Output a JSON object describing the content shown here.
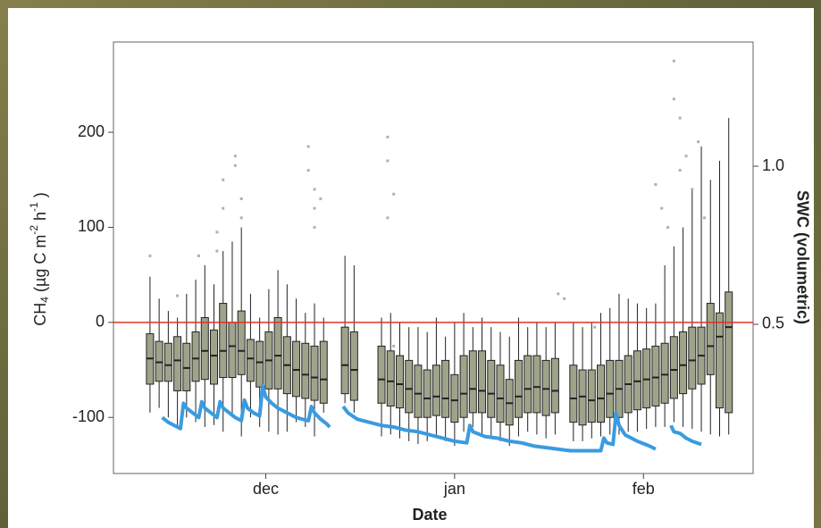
{
  "chart_data": {
    "type": "boxplot",
    "xlabel": "Date",
    "ylabel": [
      "CH",
      "4",
      " (µg C  m",
      "-2",
      " h",
      "-1",
      " )"
    ],
    "y2label": "SWC (volumetric)",
    "xlim": [
      5,
      110
    ],
    "xticks": [
      {
        "value": 30,
        "label": "dec"
      },
      {
        "value": 61,
        "label": "jan"
      },
      {
        "value": 92,
        "label": "feb"
      }
    ],
    "ylim": [
      -159,
      295
    ],
    "yticks": [
      -100,
      0,
      100,
      200
    ],
    "y2lim": [
      0.028,
      1.393
    ],
    "y2ticks": [
      0.5,
      {
        "value": 1.0,
        "label": "1.0"
      }
    ],
    "box_color": "#9ea48a",
    "outlier_color": "#b0b0b0",
    "hline": 0,
    "hline_color": "#e03228",
    "x": [
      11,
      12.5,
      14,
      15.5,
      17,
      18.5,
      20,
      21.5,
      23,
      24.5,
      26,
      27.5,
      29,
      30.5,
      32,
      33.5,
      35,
      36.5,
      38,
      39.5,
      43,
      44.5,
      49,
      50.5,
      52,
      53.5,
      55,
      56.5,
      58,
      59.5,
      61,
      62.5,
      64,
      65.5,
      67,
      68.5,
      70,
      71.5,
      73,
      74.5,
      76,
      77.5,
      80.5,
      82,
      83.5,
      85,
      86.5,
      88,
      89.5,
      91,
      92.5,
      94,
      95.5,
      97,
      98.5,
      100,
      101.5,
      103,
      104.5,
      106
    ],
    "whisker_low": [
      -95,
      -90,
      -100,
      -110,
      -100,
      -105,
      -110,
      -108,
      -115,
      -100,
      -120,
      -100,
      -110,
      -115,
      -118,
      -115,
      -105,
      -110,
      -120,
      -95,
      -85,
      -95,
      -120,
      -118,
      -122,
      -125,
      -128,
      -125,
      -120,
      -125,
      -130,
      -115,
      -110,
      -118,
      -120,
      -125,
      -130,
      -120,
      -115,
      -118,
      -122,
      -118,
      -125,
      -125,
      -122,
      -120,
      -118,
      -118,
      -115,
      -115,
      -112,
      -110,
      -110,
      -105,
      -110,
      -112,
      -115,
      -118,
      -120,
      -118
    ],
    "q1": [
      -65,
      -62,
      -62,
      -72,
      -72,
      -62,
      -60,
      -65,
      -58,
      -58,
      -55,
      -62,
      -68,
      -70,
      -70,
      -75,
      -78,
      -80,
      -82,
      -85,
      -75,
      -82,
      -85,
      -88,
      -90,
      -95,
      -100,
      -100,
      -98,
      -100,
      -105,
      -100,
      -95,
      -95,
      -100,
      -105,
      -108,
      -100,
      -95,
      -95,
      -98,
      -95,
      -105,
      -108,
      -105,
      -105,
      -100,
      -100,
      -95,
      -92,
      -90,
      -88,
      -85,
      -80,
      -75,
      -70,
      -65,
      -55,
      -90,
      -95
    ],
    "median": [
      -38,
      -42,
      -45,
      -40,
      -48,
      -38,
      -30,
      -35,
      -30,
      -25,
      -30,
      -38,
      -42,
      -40,
      -35,
      -45,
      -50,
      -55,
      -58,
      -60,
      -45,
      -50,
      -60,
      -62,
      -65,
      -70,
      -75,
      -80,
      -78,
      -80,
      -82,
      -75,
      -70,
      -72,
      -75,
      -80,
      -85,
      -78,
      -70,
      -68,
      -70,
      -72,
      -80,
      -78,
      -82,
      -80,
      -75,
      -70,
      -65,
      -62,
      -60,
      -58,
      -55,
      -50,
      -45,
      -40,
      -35,
      -25,
      -15,
      -5
    ],
    "q3": [
      -12,
      -20,
      -22,
      -15,
      -22,
      -10,
      5,
      -8,
      20,
      0,
      12,
      -18,
      -20,
      -10,
      5,
      -15,
      -20,
      -22,
      -25,
      -20,
      -5,
      -10,
      -25,
      -30,
      -35,
      -40,
      -45,
      -50,
      -45,
      -40,
      -55,
      -35,
      -30,
      -30,
      -40,
      -45,
      -60,
      -40,
      -35,
      -35,
      -40,
      -38,
      -45,
      -50,
      -50,
      -45,
      -40,
      -40,
      -35,
      -30,
      -28,
      -25,
      -22,
      -15,
      -10,
      -5,
      -5,
      20,
      10,
      32
    ],
    "whisker_high": [
      48,
      25,
      12,
      5,
      30,
      45,
      60,
      40,
      75,
      85,
      100,
      30,
      5,
      35,
      55,
      40,
      25,
      10,
      20,
      5,
      70,
      60,
      5,
      10,
      0,
      -5,
      -5,
      -10,
      5,
      -15,
      0,
      10,
      -5,
      5,
      -5,
      -10,
      -15,
      5,
      -5,
      0,
      -5,
      0,
      0,
      -5,
      0,
      10,
      15,
      30,
      25,
      20,
      15,
      20,
      60,
      80,
      100,
      140,
      185,
      150,
      170,
      215
    ],
    "outliers": {
      "x": [
        11,
        15.5,
        19,
        22,
        22,
        23,
        23,
        25,
        25,
        26,
        26,
        37,
        37,
        38,
        38,
        38,
        39,
        50,
        50,
        50,
        51,
        51,
        78,
        79,
        84,
        94,
        95,
        96,
        97,
        97,
        98,
        98,
        99,
        100,
        101,
        102
      ],
      "y": [
        70,
        28,
        70,
        75,
        95,
        120,
        150,
        175,
        165,
        130,
        110,
        160,
        185,
        140,
        120,
        100,
        130,
        195,
        170,
        110,
        135,
        -25,
        30,
        25,
        -5,
        145,
        120,
        100,
        235,
        275,
        215,
        160,
        175,
        140,
        190,
        110
      ]
    },
    "swc": {
      "name": "SWC (volumetric)",
      "color": "#3a9be0",
      "axis": "y2",
      "x": [
        13,
        14,
        15,
        16,
        16.5,
        17,
        18,
        19,
        19.5,
        20,
        21,
        22,
        22.5,
        23,
        24,
        25,
        26,
        26.5,
        27,
        28,
        29,
        29.5,
        30,
        31,
        32,
        33,
        34,
        35,
        36,
        37,
        37.5,
        38,
        39,
        40,
        40.5,
        41.5,
        42.7,
        43.5,
        45,
        47,
        49,
        51,
        53,
        55,
        57,
        59,
        61,
        63,
        63.5,
        64,
        66,
        68,
        70,
        72,
        74,
        76,
        78,
        80,
        82,
        84,
        85,
        85.5,
        86,
        87,
        87.5,
        88,
        89,
        91,
        93,
        94,
        94.5,
        96.5,
        97,
        98,
        99,
        100,
        101.5
      ],
      "values": [
        0.205,
        0.19,
        0.18,
        0.17,
        0.25,
        0.235,
        0.22,
        0.205,
        0.255,
        0.235,
        0.22,
        0.205,
        0.255,
        0.235,
        0.22,
        0.205,
        0.195,
        0.26,
        0.235,
        0.22,
        0.21,
        0.305,
        0.27,
        0.25,
        0.235,
        0.225,
        0.215,
        0.205,
        0.2,
        0.195,
        0.24,
        0.22,
        0.2,
        0.185,
        0.175,
        null,
        0.24,
        0.22,
        0.2,
        0.19,
        0.18,
        0.175,
        0.165,
        0.16,
        0.15,
        0.14,
        0.13,
        0.125,
        0.18,
        0.16,
        0.145,
        0.14,
        0.13,
        0.125,
        0.115,
        0.11,
        0.105,
        0.1,
        0.1,
        0.1,
        0.1,
        0.14,
        0.125,
        0.12,
        0.22,
        0.18,
        0.15,
        0.13,
        0.115,
        0.105,
        null,
        0.18,
        0.16,
        0.155,
        0.14,
        0.13,
        0.12
      ]
    }
  }
}
